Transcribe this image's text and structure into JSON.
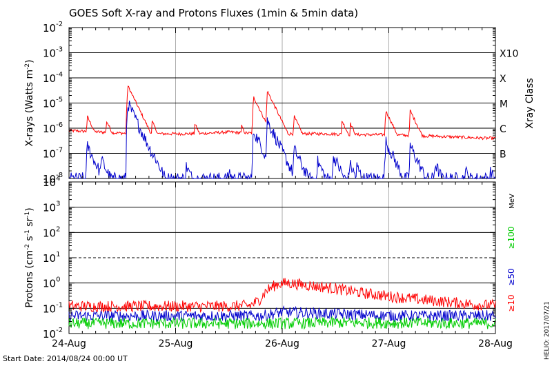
{
  "title": "GOES Soft X-ray and Protons Fluxes   (1min & 5min data)",
  "footer": {
    "start_date": "Start Date: 2014/08/24 00:00 UT",
    "credit": "HELIO: 2017/07/21"
  },
  "chart_data": [
    {
      "type": "line",
      "name": "xray-panel",
      "ylabel": "X-rays (Watts m^-2)",
      "y_scale": "log",
      "ylim": [
        1e-08,
        0.01
      ],
      "y_ticks": [
        {
          "mantissa": "10",
          "exp": "-8",
          "value": 1e-08
        },
        {
          "mantissa": "10",
          "exp": "-7",
          "value": 1e-07
        },
        {
          "mantissa": "10",
          "exp": "-6",
          "value": 1e-06
        },
        {
          "mantissa": "10",
          "exp": "-5",
          "value": 1e-05
        },
        {
          "mantissa": "10",
          "exp": "-4",
          "value": 0.0001
        },
        {
          "mantissa": "10",
          "exp": "-3",
          "value": 0.001
        },
        {
          "mantissa": "10",
          "exp": "-2",
          "value": 0.01
        }
      ],
      "right_axis_label": "Xray Class",
      "classes": [
        {
          "label": "B",
          "value": 1e-07
        },
        {
          "label": "C",
          "value": 1e-06
        },
        {
          "label": "M",
          "value": 1e-05
        },
        {
          "label": "X",
          "value": 0.0001
        },
        {
          "label": "X10",
          "value": 0.001
        }
      ],
      "gridlines_y": [
        1e-07,
        1e-06,
        1e-05,
        0.0001,
        0.001
      ],
      "xlim_days": [
        0,
        4
      ],
      "x_ticks": [
        "24-Aug",
        "25-Aug",
        "26-Aug",
        "27-Aug",
        "28-Aug"
      ],
      "series": [
        {
          "color": "#ff0000",
          "baseline": [
            [
              0,
              8e-07
            ],
            [
              0.3,
              7e-07
            ],
            [
              0.6,
              6e-07
            ],
            [
              0.9,
              6e-07
            ],
            [
              1.2,
              6e-07
            ],
            [
              1.5,
              7e-07
            ],
            [
              1.8,
              6e-07
            ],
            [
              2.1,
              6e-07
            ],
            [
              2.4,
              6e-07
            ],
            [
              2.7,
              5.5e-07
            ],
            [
              3.0,
              5.5e-07
            ],
            [
              3.3,
              5e-07
            ],
            [
              3.6,
              4.5e-07
            ],
            [
              3.9,
              4e-07
            ],
            [
              4.0,
              4e-07
            ]
          ],
          "peaks": [
            [
              0.17,
              3e-06
            ],
            [
              0.35,
              2e-06
            ],
            [
              0.55,
              5e-05
            ],
            [
              0.78,
              1.8e-06
            ],
            [
              1.18,
              1.5e-06
            ],
            [
              1.62,
              1.2e-06
            ],
            [
              1.73,
              1.8e-05
            ],
            [
              1.86,
              3e-05
            ],
            [
              2.11,
              3e-06
            ],
            [
              2.56,
              2e-06
            ],
            [
              2.64,
              1.5e-06
            ],
            [
              2.97,
              5e-06
            ],
            [
              3.2,
              5e-06
            ],
            [
              3.24,
              2e-06
            ]
          ]
        },
        {
          "color": "#0000cc",
          "baseline": [
            [
              0,
              1e-08
            ],
            [
              4.0,
              1e-08
            ]
          ],
          "peaks": [
            [
              0.17,
              2e-07
            ],
            [
              0.3,
              6e-08
            ],
            [
              0.55,
              1e-05
            ],
            [
              0.7,
              4e-08
            ],
            [
              0.8,
              8e-08
            ],
            [
              1.1,
              3e-08
            ],
            [
              1.5,
              2e-08
            ],
            [
              1.73,
              8e-07
            ],
            [
              1.86,
              2e-06
            ],
            [
              2.11,
              1.5e-07
            ],
            [
              2.33,
              5e-08
            ],
            [
              2.48,
              8e-08
            ],
            [
              2.63,
              4e-08
            ],
            [
              2.7,
              3e-08
            ],
            [
              2.97,
              3e-07
            ],
            [
              3.2,
              2e-07
            ],
            [
              3.43,
              4e-08
            ],
            [
              3.72,
              2e-08
            ],
            [
              3.95,
              2e-08
            ]
          ]
        }
      ]
    },
    {
      "type": "line",
      "name": "protons-panel",
      "ylabel": "Protons (cm^-2 s^-1 sr^-1)",
      "y_scale": "log",
      "ylim": [
        0.01,
        10000
      ],
      "y_ticks": [
        {
          "mantissa": "10",
          "exp": "-2",
          "value": 0.01
        },
        {
          "mantissa": "10",
          "exp": "-1",
          "value": 0.1
        },
        {
          "mantissa": "10",
          "exp": "0",
          "value": 1
        },
        {
          "mantissa": "10",
          "exp": "1",
          "value": 10
        },
        {
          "mantissa": "10",
          "exp": "2",
          "value": 100
        },
        {
          "mantissa": "10",
          "exp": "3",
          "value": 1000
        },
        {
          "mantissa": "10",
          "exp": "4",
          "value": 10000
        }
      ],
      "gridlines_y": [
        0.1,
        1,
        100,
        1000
      ],
      "dashed_y": 10,
      "unit_label": "MeV",
      "xlim_days": [
        0,
        4
      ],
      "x_ticks": [
        "24-Aug",
        "25-Aug",
        "26-Aug",
        "27-Aug",
        "28-Aug"
      ],
      "series": [
        {
          "name": "≥10",
          "color": "#ff0000",
          "profile": [
            [
              0,
              0.12
            ],
            [
              0.5,
              0.12
            ],
            [
              1.0,
              0.12
            ],
            [
              1.5,
              0.12
            ],
            [
              1.7,
              0.13
            ],
            [
              1.78,
              0.2
            ],
            [
              1.85,
              0.5
            ],
            [
              1.95,
              0.9
            ],
            [
              2.05,
              1.0
            ],
            [
              2.25,
              0.8
            ],
            [
              2.5,
              0.6
            ],
            [
              2.75,
              0.4
            ],
            [
              3.0,
              0.3
            ],
            [
              3.3,
              0.22
            ],
            [
              3.6,
              0.17
            ],
            [
              3.8,
              0.14
            ],
            [
              4.0,
              0.13
            ]
          ]
        },
        {
          "name": "≥50",
          "color": "#0000cc",
          "profile": [
            [
              0,
              0.05
            ],
            [
              1.0,
              0.05
            ],
            [
              1.8,
              0.05
            ],
            [
              2.0,
              0.07
            ],
            [
              2.5,
              0.06
            ],
            [
              3.0,
              0.05
            ],
            [
              4.0,
              0.05
            ]
          ]
        },
        {
          "name": "≥100",
          "color": "#00cc00",
          "profile": [
            [
              0,
              0.025
            ],
            [
              2.0,
              0.025
            ],
            [
              2.5,
              0.027
            ],
            [
              4.0,
              0.025
            ]
          ]
        }
      ]
    }
  ]
}
